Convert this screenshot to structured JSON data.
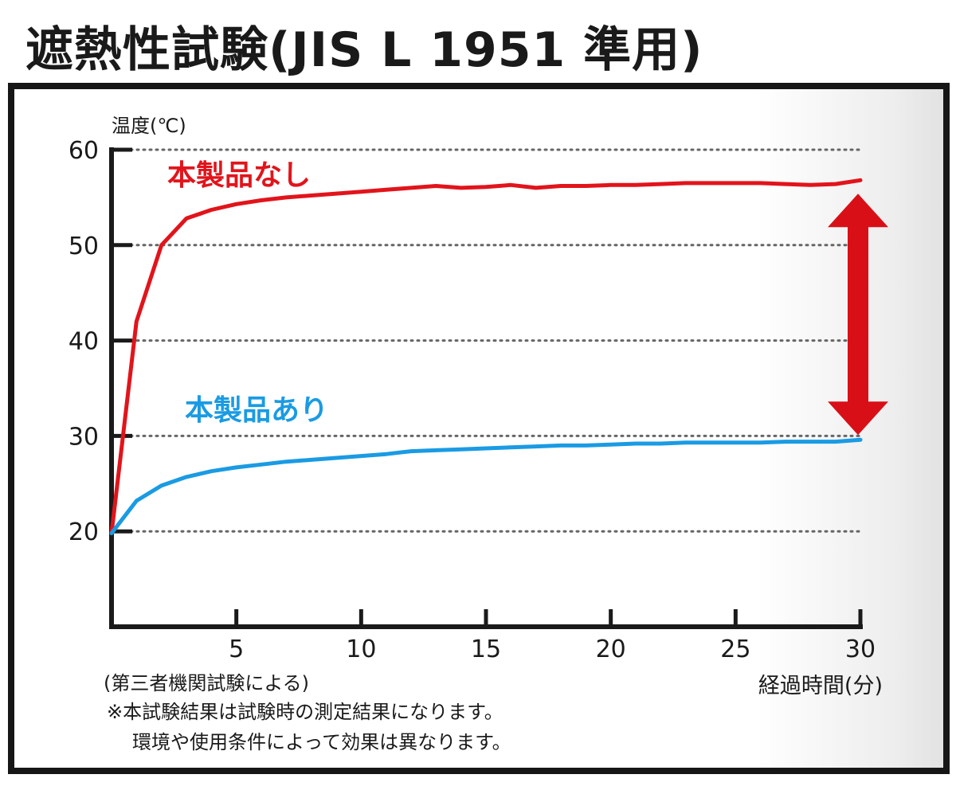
{
  "title": "遮熱性試験(JIS L 1951 準用)",
  "source_note": "(第三者機関試験による)",
  "disclaimer_lines": [
    "※本試験結果は試験時の測定結果になります。",
    "環境や使用条件によって効果は異なります。"
  ],
  "colors": {
    "without": "#e2141b",
    "with": "#1a9be3",
    "arrow": "#d90f17",
    "axis": "#1a1a1a",
    "grid": "#666666"
  },
  "chart_data": {
    "type": "line",
    "title": "遮熱性試験(JIS L 1951 準用)",
    "ylabel": "温度(℃)",
    "xlabel": "経過時間(分)",
    "ylim": [
      10,
      60
    ],
    "xlim": [
      0,
      30
    ],
    "yticks": [
      20,
      30,
      40,
      50,
      60
    ],
    "xticks": [
      5,
      10,
      15,
      20,
      25,
      30
    ],
    "grid": "dotted horizontal at y ticks",
    "series": [
      {
        "name": "本製品なし",
        "color": "#e2141b",
        "points": [
          [
            0,
            19.8
          ],
          [
            1,
            42
          ],
          [
            2,
            50
          ],
          [
            3,
            52.8
          ],
          [
            4,
            53.7
          ],
          [
            5,
            54.3
          ],
          [
            6,
            54.7
          ],
          [
            7,
            55
          ],
          [
            8,
            55.2
          ],
          [
            9,
            55.4
          ],
          [
            10,
            55.6
          ],
          [
            11,
            55.8
          ],
          [
            12,
            56
          ],
          [
            13,
            56.2
          ],
          [
            14,
            56
          ],
          [
            15,
            56.1
          ],
          [
            16,
            56.3
          ],
          [
            17,
            56
          ],
          [
            18,
            56.2
          ],
          [
            19,
            56.2
          ],
          [
            20,
            56.3
          ],
          [
            21,
            56.3
          ],
          [
            22,
            56.4
          ],
          [
            23,
            56.5
          ],
          [
            24,
            56.5
          ],
          [
            25,
            56.5
          ],
          [
            26,
            56.5
          ],
          [
            27,
            56.4
          ],
          [
            28,
            56.3
          ],
          [
            29,
            56.4
          ],
          [
            30,
            56.8
          ]
        ]
      },
      {
        "name": "本製品あり",
        "color": "#1a9be3",
        "points": [
          [
            0,
            19.8
          ],
          [
            1,
            23.2
          ],
          [
            2,
            24.8
          ],
          [
            3,
            25.7
          ],
          [
            4,
            26.3
          ],
          [
            5,
            26.7
          ],
          [
            6,
            27
          ],
          [
            7,
            27.3
          ],
          [
            8,
            27.5
          ],
          [
            9,
            27.7
          ],
          [
            10,
            27.9
          ],
          [
            11,
            28.1
          ],
          [
            12,
            28.4
          ],
          [
            13,
            28.5
          ],
          [
            14,
            28.6
          ],
          [
            15,
            28.7
          ],
          [
            16,
            28.8
          ],
          [
            17,
            28.9
          ],
          [
            18,
            29
          ],
          [
            19,
            29
          ],
          [
            20,
            29.1
          ],
          [
            21,
            29.2
          ],
          [
            22,
            29.2
          ],
          [
            23,
            29.3
          ],
          [
            24,
            29.3
          ],
          [
            25,
            29.3
          ],
          [
            26,
            29.3
          ],
          [
            27,
            29.4
          ],
          [
            28,
            29.4
          ],
          [
            29,
            29.4
          ],
          [
            30,
            29.6
          ]
        ]
      }
    ],
    "annotation": {
      "type": "double-arrow",
      "x": 30,
      "from": 29.6,
      "to": 56.8
    }
  }
}
